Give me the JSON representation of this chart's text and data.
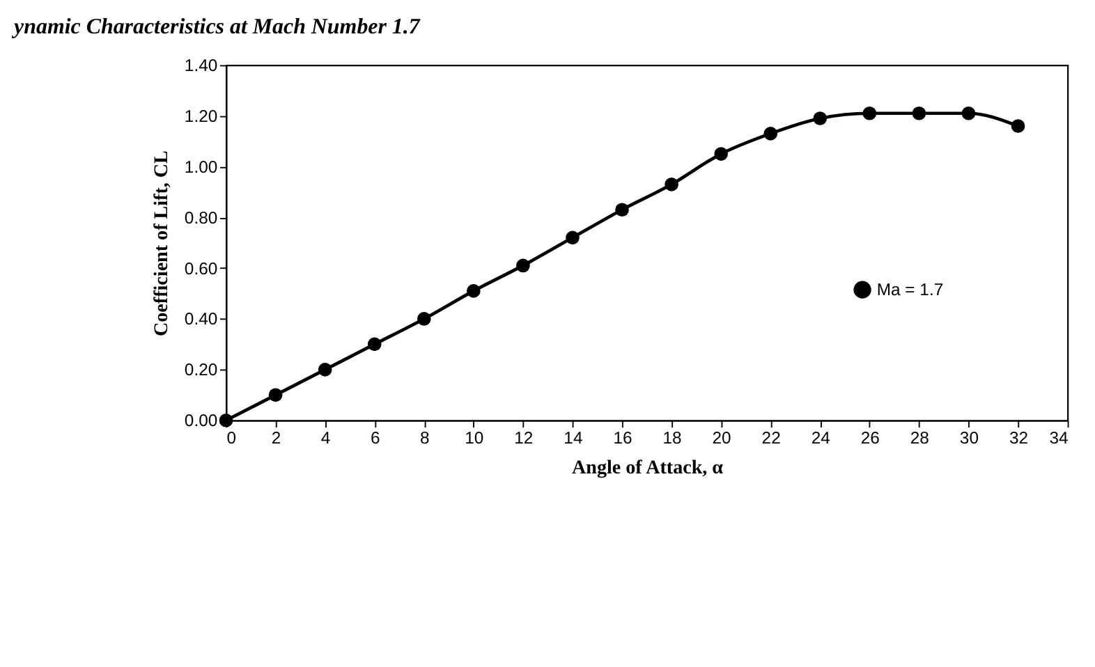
{
  "chart_data": {
    "type": "line",
    "title": "ynamic Characteristics at Mach Number 1.7",
    "xlabel": "Angle of Attack, α",
    "ylabel": "Coefficient of Lift, CL",
    "x": [
      0,
      2,
      4,
      6,
      8,
      10,
      12,
      14,
      16,
      18,
      20,
      22,
      24,
      26,
      28,
      30,
      32
    ],
    "series": [
      {
        "name": "Ma = 1.7",
        "color": "#000000",
        "values": [
          0.0,
          0.1,
          0.2,
          0.3,
          0.4,
          0.51,
          0.61,
          0.72,
          0.83,
          0.93,
          1.05,
          1.13,
          1.19,
          1.21,
          1.21,
          1.21,
          1.16
        ]
      }
    ],
    "xlim": [
      0,
      34
    ],
    "xticks": [
      0,
      2,
      4,
      6,
      8,
      10,
      12,
      14,
      16,
      18,
      20,
      22,
      24,
      26,
      28,
      30,
      32,
      34
    ],
    "ylim": [
      0,
      1.4
    ],
    "yticks": [
      {
        "value": 0,
        "label": "0.00"
      },
      {
        "value": 0.2,
        "label": "0.20"
      },
      {
        "value": 0.4,
        "label": "0.40"
      },
      {
        "value": 0.6,
        "label": "0.60"
      },
      {
        "value": 0.8,
        "label": "0.80"
      },
      {
        "value": 1.0,
        "label": "1.00"
      },
      {
        "value": 1.2,
        "label": "1.20"
      },
      {
        "value": 1.4,
        "label": "1.40"
      }
    ],
    "grid": false,
    "legend": "right",
    "marker": "circle",
    "line_style": "solid"
  }
}
